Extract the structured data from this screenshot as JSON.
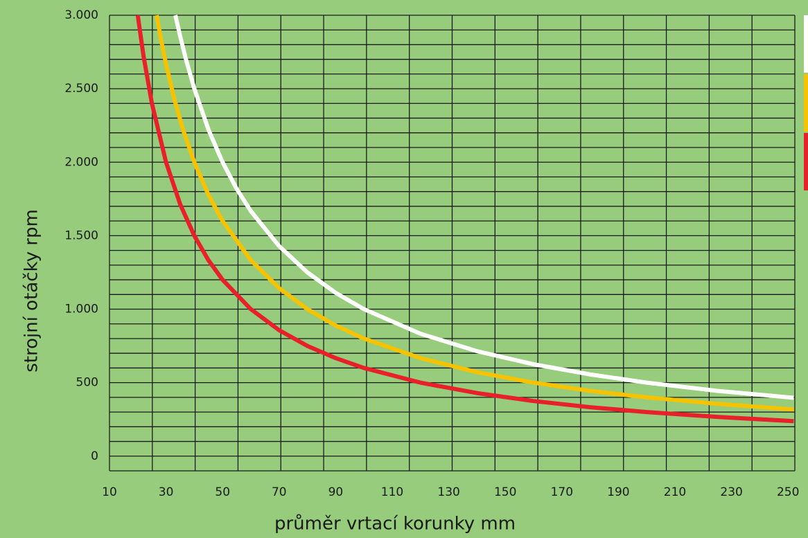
{
  "chart_data": {
    "type": "line",
    "xlabel": "průměr vrtací korunky mm",
    "ylabel": "strojní otáčky  rpm",
    "xlim": [
      10,
      252.4
    ],
    "ylim": [
      -100,
      3000
    ],
    "xticks": [
      10,
      30,
      50,
      70,
      90,
      110,
      130,
      150,
      170,
      190,
      210,
      230,
      250
    ],
    "yticks": [
      0,
      500,
      {
        "value": 1000,
        "label": "1.000"
      },
      {
        "value": 1500,
        "label": "1.500"
      },
      {
        "value": 2000,
        "label": "2.000"
      },
      {
        "value": 2500,
        "label": "2.500"
      },
      {
        "value": 3000,
        "label": "3.000"
      }
    ],
    "grid": true,
    "grid_step": 100,
    "x_grid_divisions": 16,
    "legend": "right",
    "series": [
      {
        "color": "#ffffff",
        "x": [
          33.3,
          35,
          37,
          40,
          45,
          50,
          55,
          60,
          70,
          80,
          90,
          100,
          120,
          140,
          160,
          180,
          200,
          225,
          252
        ],
        "values": [
          3000,
          2857,
          2703,
          2500,
          2222,
          2000,
          1818,
          1667,
          1429,
          1250,
          1111,
          1000,
          833,
          714,
          625,
          556,
          500,
          444,
          397
        ]
      },
      {
        "color": "#f7c300",
        "x": [
          26.7,
          28,
          30,
          33,
          36,
          40,
          45,
          50,
          60,
          70,
          80,
          90,
          100,
          120,
          140,
          160,
          180,
          200,
          225,
          252
        ],
        "values": [
          3000,
          2857,
          2667,
          2424,
          2222,
          2000,
          1778,
          1600,
          1333,
          1143,
          1000,
          889,
          800,
          667,
          571,
          500,
          444,
          400,
          356,
          317
        ]
      },
      {
        "color": "#e8202a",
        "x": [
          20,
          22,
          25,
          30,
          35,
          40,
          45,
          50,
          60,
          70,
          80,
          90,
          100,
          120,
          140,
          160,
          180,
          200,
          225,
          252
        ],
        "values": [
          3000,
          2727,
          2400,
          2000,
          1714,
          1500,
          1333,
          1200,
          1000,
          857,
          750,
          667,
          600,
          500,
          429,
          375,
          333,
          300,
          267,
          238
        ]
      }
    ]
  }
}
